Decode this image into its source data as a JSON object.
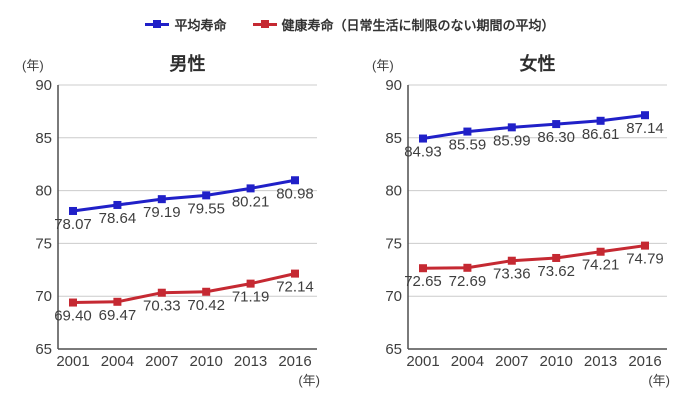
{
  "colors": {
    "blue": "#2020c8",
    "red": "#c52932",
    "grid": "#cccccc",
    "axis": "#4f4f4f",
    "text": "#3e3e3e"
  },
  "legend": {
    "items": [
      {
        "key": "average-life",
        "label": "平均寿命",
        "color": "#2020c8"
      },
      {
        "key": "healthy-life",
        "label": "健康寿命（日常生活に制限のない期間の平均）",
        "color": "#c52932"
      }
    ]
  },
  "chart_data": [
    {
      "type": "line",
      "title": "男性",
      "y_unit_label": "(年)",
      "x_unit_label": "(年)",
      "categories": [
        "2001",
        "2004",
        "2007",
        "2010",
        "2013",
        "2016"
      ],
      "ylim": [
        65,
        90
      ],
      "yticks": [
        90,
        85,
        80,
        75,
        70,
        65
      ],
      "grid": true,
      "legend_position": "top",
      "series": [
        {
          "key": "average-life",
          "name": "平均寿命",
          "color": "#2020c8",
          "values": [
            78.07,
            78.64,
            79.19,
            79.55,
            80.21,
            80.98
          ]
        },
        {
          "key": "healthy-life",
          "name": "健康寿命（日常生活に制限のない期間の平均）",
          "color": "#c52932",
          "values": [
            69.4,
            69.47,
            70.33,
            70.42,
            71.19,
            72.14
          ]
        }
      ]
    },
    {
      "type": "line",
      "title": "女性",
      "y_unit_label": "(年)",
      "x_unit_label": "(年)",
      "categories": [
        "2001",
        "2004",
        "2007",
        "2010",
        "2013",
        "2016"
      ],
      "ylim": [
        65,
        90
      ],
      "yticks": [
        90,
        85,
        80,
        75,
        70,
        65
      ],
      "grid": true,
      "legend_position": "top",
      "series": [
        {
          "key": "average-life",
          "name": "平均寿命",
          "color": "#2020c8",
          "values": [
            84.93,
            85.59,
            85.99,
            86.3,
            86.61,
            87.14
          ]
        },
        {
          "key": "healthy-life",
          "name": "健康寿命（日常生活に制限のない期間の平均）",
          "color": "#c52932",
          "values": [
            72.65,
            72.69,
            73.36,
            73.62,
            74.21,
            74.79
          ]
        }
      ]
    }
  ]
}
